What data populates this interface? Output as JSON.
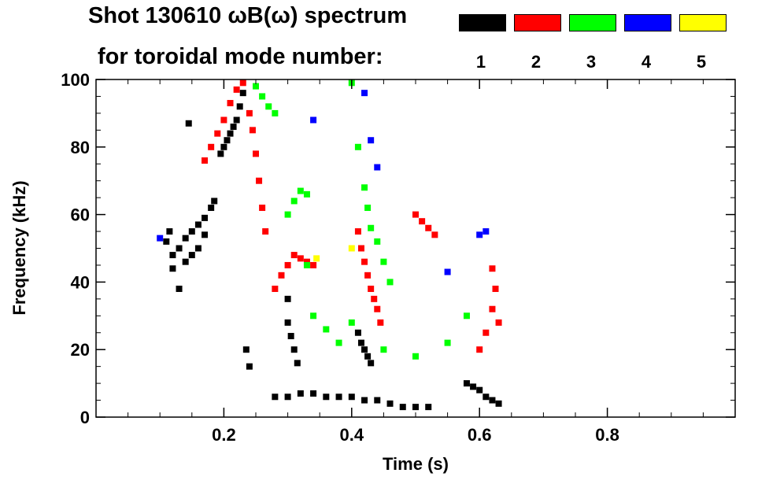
{
  "title_line1": "Shot 130610 ωB(ω) spectrum",
  "title_line2": "for toroidal mode number:",
  "chart_data": {
    "type": "scatter",
    "xlabel": "Time (s)",
    "ylabel": "Frequency (kHz)",
    "xlim": [
      0.0,
      1.0
    ],
    "ylim": [
      0,
      100
    ],
    "x_ticks": [
      0.2,
      0.4,
      0.6,
      0.8
    ],
    "x_tick_labels": [
      "0.2",
      "0.4",
      "0.6",
      "0.8"
    ],
    "y_ticks": [
      0,
      20,
      40,
      60,
      80,
      100
    ],
    "y_tick_labels": [
      "0",
      "20",
      "40",
      "60",
      "80",
      "100"
    ],
    "grid": false,
    "legend": {
      "placement": "top-right",
      "modes": [
        {
          "n": "1",
          "color": "#000000"
        },
        {
          "n": "2",
          "color": "#ff0000"
        },
        {
          "n": "3",
          "color": "#00ff00"
        },
        {
          "n": "4",
          "color": "#0000ff"
        },
        {
          "n": "5",
          "color": "#ffff00"
        }
      ]
    },
    "series": [
      {
        "mode": 1,
        "color": "#000000",
        "points": [
          [
            0.11,
            52
          ],
          [
            0.12,
            48
          ],
          [
            0.13,
            50
          ],
          [
            0.14,
            53
          ],
          [
            0.15,
            55
          ],
          [
            0.16,
            57
          ],
          [
            0.17,
            59
          ],
          [
            0.18,
            62
          ],
          [
            0.185,
            64
          ],
          [
            0.12,
            44
          ],
          [
            0.14,
            46
          ],
          [
            0.16,
            50
          ],
          [
            0.13,
            38
          ],
          [
            0.115,
            55
          ],
          [
            0.15,
            48
          ],
          [
            0.17,
            54
          ],
          [
            0.145,
            87
          ],
          [
            0.195,
            78
          ],
          [
            0.2,
            80
          ],
          [
            0.205,
            82
          ],
          [
            0.21,
            84
          ],
          [
            0.215,
            86
          ],
          [
            0.22,
            88
          ],
          [
            0.225,
            92
          ],
          [
            0.23,
            96
          ],
          [
            0.235,
            20
          ],
          [
            0.24,
            15
          ],
          [
            0.28,
            6
          ],
          [
            0.3,
            6
          ],
          [
            0.32,
            7
          ],
          [
            0.34,
            7
          ],
          [
            0.36,
            6
          ],
          [
            0.38,
            6
          ],
          [
            0.4,
            6
          ],
          [
            0.42,
            5
          ],
          [
            0.44,
            5
          ],
          [
            0.46,
            4
          ],
          [
            0.48,
            3
          ],
          [
            0.5,
            3
          ],
          [
            0.52,
            3
          ],
          [
            0.3,
            28
          ],
          [
            0.305,
            24
          ],
          [
            0.31,
            20
          ],
          [
            0.315,
            16
          ],
          [
            0.3,
            35
          ],
          [
            0.41,
            25
          ],
          [
            0.415,
            22
          ],
          [
            0.42,
            20
          ],
          [
            0.425,
            18
          ],
          [
            0.43,
            16
          ],
          [
            0.58,
            10
          ],
          [
            0.59,
            9
          ],
          [
            0.6,
            8
          ],
          [
            0.61,
            6
          ],
          [
            0.62,
            5
          ],
          [
            0.63,
            4
          ]
        ]
      },
      {
        "mode": 2,
        "color": "#ff0000",
        "points": [
          [
            0.17,
            76
          ],
          [
            0.18,
            80
          ],
          [
            0.19,
            84
          ],
          [
            0.2,
            88
          ],
          [
            0.21,
            93
          ],
          [
            0.22,
            97
          ],
          [
            0.23,
            99
          ],
          [
            0.24,
            90
          ],
          [
            0.245,
            85
          ],
          [
            0.25,
            78
          ],
          [
            0.255,
            70
          ],
          [
            0.26,
            62
          ],
          [
            0.265,
            55
          ],
          [
            0.28,
            38
          ],
          [
            0.29,
            42
          ],
          [
            0.3,
            45
          ],
          [
            0.31,
            48
          ],
          [
            0.32,
            47
          ],
          [
            0.33,
            46
          ],
          [
            0.34,
            45
          ],
          [
            0.41,
            55
          ],
          [
            0.415,
            50
          ],
          [
            0.42,
            46
          ],
          [
            0.425,
            42
          ],
          [
            0.43,
            38
          ],
          [
            0.435,
            35
          ],
          [
            0.44,
            32
          ],
          [
            0.445,
            28
          ],
          [
            0.5,
            60
          ],
          [
            0.51,
            58
          ],
          [
            0.52,
            56
          ],
          [
            0.53,
            54
          ],
          [
            0.6,
            20
          ],
          [
            0.61,
            25
          ],
          [
            0.62,
            32
          ],
          [
            0.625,
            38
          ],
          [
            0.63,
            28
          ],
          [
            0.62,
            44
          ]
        ]
      },
      {
        "mode": 3,
        "color": "#00ff00",
        "points": [
          [
            0.25,
            98
          ],
          [
            0.26,
            95
          ],
          [
            0.27,
            92
          ],
          [
            0.28,
            90
          ],
          [
            0.3,
            60
          ],
          [
            0.31,
            64
          ],
          [
            0.32,
            67
          ],
          [
            0.33,
            66
          ],
          [
            0.4,
            99
          ],
          [
            0.41,
            80
          ],
          [
            0.42,
            68
          ],
          [
            0.425,
            62
          ],
          [
            0.43,
            56
          ],
          [
            0.44,
            52
          ],
          [
            0.45,
            46
          ],
          [
            0.46,
            40
          ],
          [
            0.34,
            30
          ],
          [
            0.36,
            26
          ],
          [
            0.38,
            22
          ],
          [
            0.4,
            28
          ],
          [
            0.45,
            20
          ],
          [
            0.5,
            18
          ],
          [
            0.55,
            22
          ],
          [
            0.58,
            30
          ],
          [
            0.33,
            45
          ]
        ]
      },
      {
        "mode": 4,
        "color": "#0000ff",
        "points": [
          [
            0.34,
            88
          ],
          [
            0.42,
            96
          ],
          [
            0.43,
            82
          ],
          [
            0.44,
            74
          ],
          [
            0.55,
            43
          ],
          [
            0.6,
            54
          ],
          [
            0.61,
            55
          ],
          [
            0.1,
            53
          ]
        ]
      },
      {
        "mode": 5,
        "color": "#ffff00",
        "points": [
          [
            0.345,
            47
          ],
          [
            0.4,
            50
          ]
        ]
      }
    ]
  }
}
